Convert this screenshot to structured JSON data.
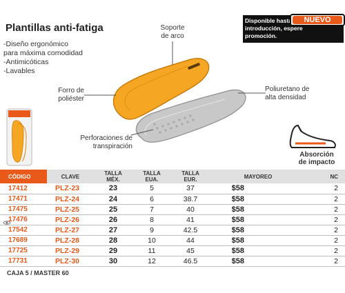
{
  "title": "Plantillas anti-fatiga",
  "features": [
    "-Diseño ergonómico",
    "para máxima comodidad",
    "-Antimicóticas",
    "-Lavables"
  ],
  "promo": {
    "badge": "NUEVO",
    "text": "Disponible hasta el mes de introducción, espere promoción."
  },
  "callouts": {
    "arch_1": "Soporte",
    "arch_2": "de arco",
    "lining_1": "Forro de",
    "lining_2": "poliéster",
    "foam_1": "Poliuretano de",
    "foam_2": "alta densidad",
    "perf_1": "Perforaciones de",
    "perf_2": "transpiración",
    "impact_1": "Absorción",
    "impact_2": "de impacto"
  },
  "table": {
    "headers": {
      "code": "CÓDIGO",
      "clave": "CLAVE",
      "mex_1": "TALLA",
      "mex_2": "MÉX.",
      "eua_1": "TALLA",
      "eua_2": "EUA.",
      "eur_1": "TALLA",
      "eur_2": "EUR.",
      "mayoreo": "MAYOREO",
      "nc": "NC"
    },
    "rows": [
      {
        "code": "17412",
        "clave": "PLZ-23",
        "mex": "23",
        "eua": "5",
        "eur": "37",
        "price": "$58",
        "nc": "2"
      },
      {
        "code": "17471",
        "clave": "PLZ-24",
        "mex": "24",
        "eua": "6",
        "eur": "38.7",
        "price": "$58",
        "nc": "2"
      },
      {
        "code": "17475",
        "clave": "PLZ-25",
        "mex": "25",
        "eua": "7",
        "eur": "40",
        "price": "$58",
        "nc": "2"
      },
      {
        "code": "17476",
        "clave": "PLZ-26",
        "mex": "26",
        "eua": "8",
        "eur": "41",
        "price": "$58",
        "nc": "2"
      },
      {
        "code": "17542",
        "clave": "PLZ-27",
        "mex": "27",
        "eua": "9",
        "eur": "42.5",
        "price": "$58",
        "nc": "2"
      },
      {
        "code": "17689",
        "clave": "PLZ-28",
        "mex": "28",
        "eua": "10",
        "eur": "44",
        "price": "$58",
        "nc": "2"
      },
      {
        "code": "17725",
        "clave": "PLZ-29",
        "mex": "29",
        "eua": "11",
        "eur": "45",
        "price": "$58",
        "nc": "2"
      },
      {
        "code": "17731",
        "clave": "PLZ-30",
        "mex": "30",
        "eua": "12",
        "eur": "46.5",
        "price": "$58",
        "nc": "2"
      }
    ]
  },
  "footer": "CAJA 5 / MASTER 60",
  "colors": {
    "accent": "#e8591a",
    "insole_yellow": "#f5a623",
    "insole_gray": "#c8c8c8"
  }
}
